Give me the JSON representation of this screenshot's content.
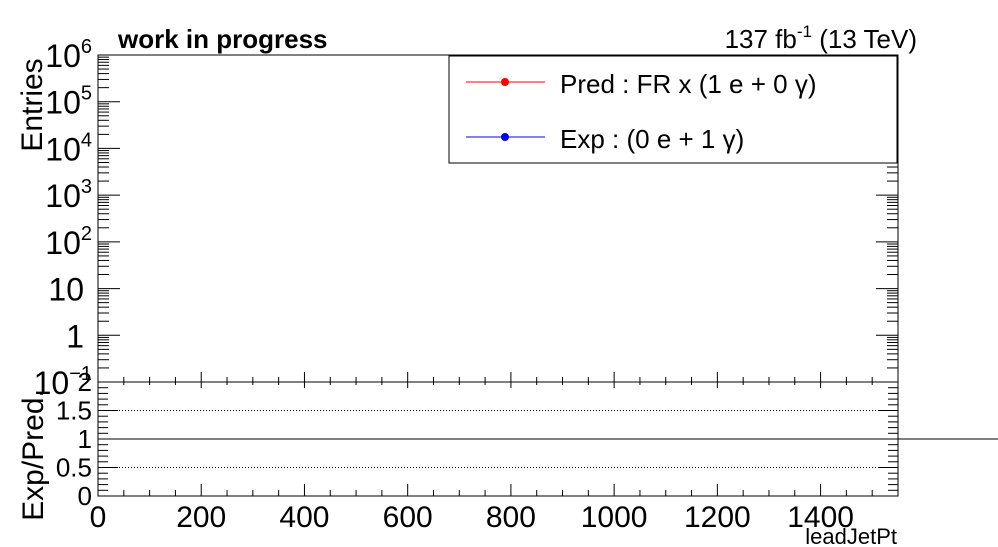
{
  "chart_data": [
    {
      "type": "line",
      "panel": "main",
      "header_left": "work in progress",
      "header_right": {
        "lumi": "137 fb",
        "lumi_exp": "-1",
        "energy": " (13 TeV)"
      },
      "ylabel": "Entries",
      "yscale": "log",
      "ylim": [
        0.1,
        1000000
      ],
      "ytick_labels": [
        {
          "value": 1000000,
          "base": "10",
          "exp": "6"
        },
        {
          "value": 100000,
          "base": "10",
          "exp": "5"
        },
        {
          "value": 10000,
          "base": "10",
          "exp": "4"
        },
        {
          "value": 1000,
          "base": "10",
          "exp": "3"
        },
        {
          "value": 100,
          "base": "10",
          "exp": "2"
        },
        {
          "value": 10,
          "base": "10",
          "exp": ""
        },
        {
          "value": 1,
          "base": "1",
          "exp": ""
        },
        {
          "value": 0.1,
          "base": "10",
          "exp": "−1"
        }
      ],
      "xlim": [
        0,
        1550
      ],
      "series": [
        {
          "name": "Pred : FR x (1 e + 0 γ)",
          "color": "#ff0000"
        },
        {
          "name": "Exp : (0 e + 1 γ)",
          "color": "#0000ff"
        }
      ],
      "legend_position": "top-right"
    },
    {
      "type": "line",
      "panel": "ratio",
      "ylabel": "Exp/Pred.",
      "xlabel": "leadJetPt",
      "ylim": [
        0,
        2
      ],
      "ytick_labels": [
        "0",
        "0.5",
        "1",
        "1.5",
        "2"
      ],
      "reference_lines": [
        0.5,
        1,
        1.5
      ],
      "xlim": [
        0,
        1550
      ],
      "xtick_labels": [
        "0",
        "200",
        "400",
        "600",
        "800",
        "1000",
        "1200",
        "1400"
      ]
    }
  ]
}
